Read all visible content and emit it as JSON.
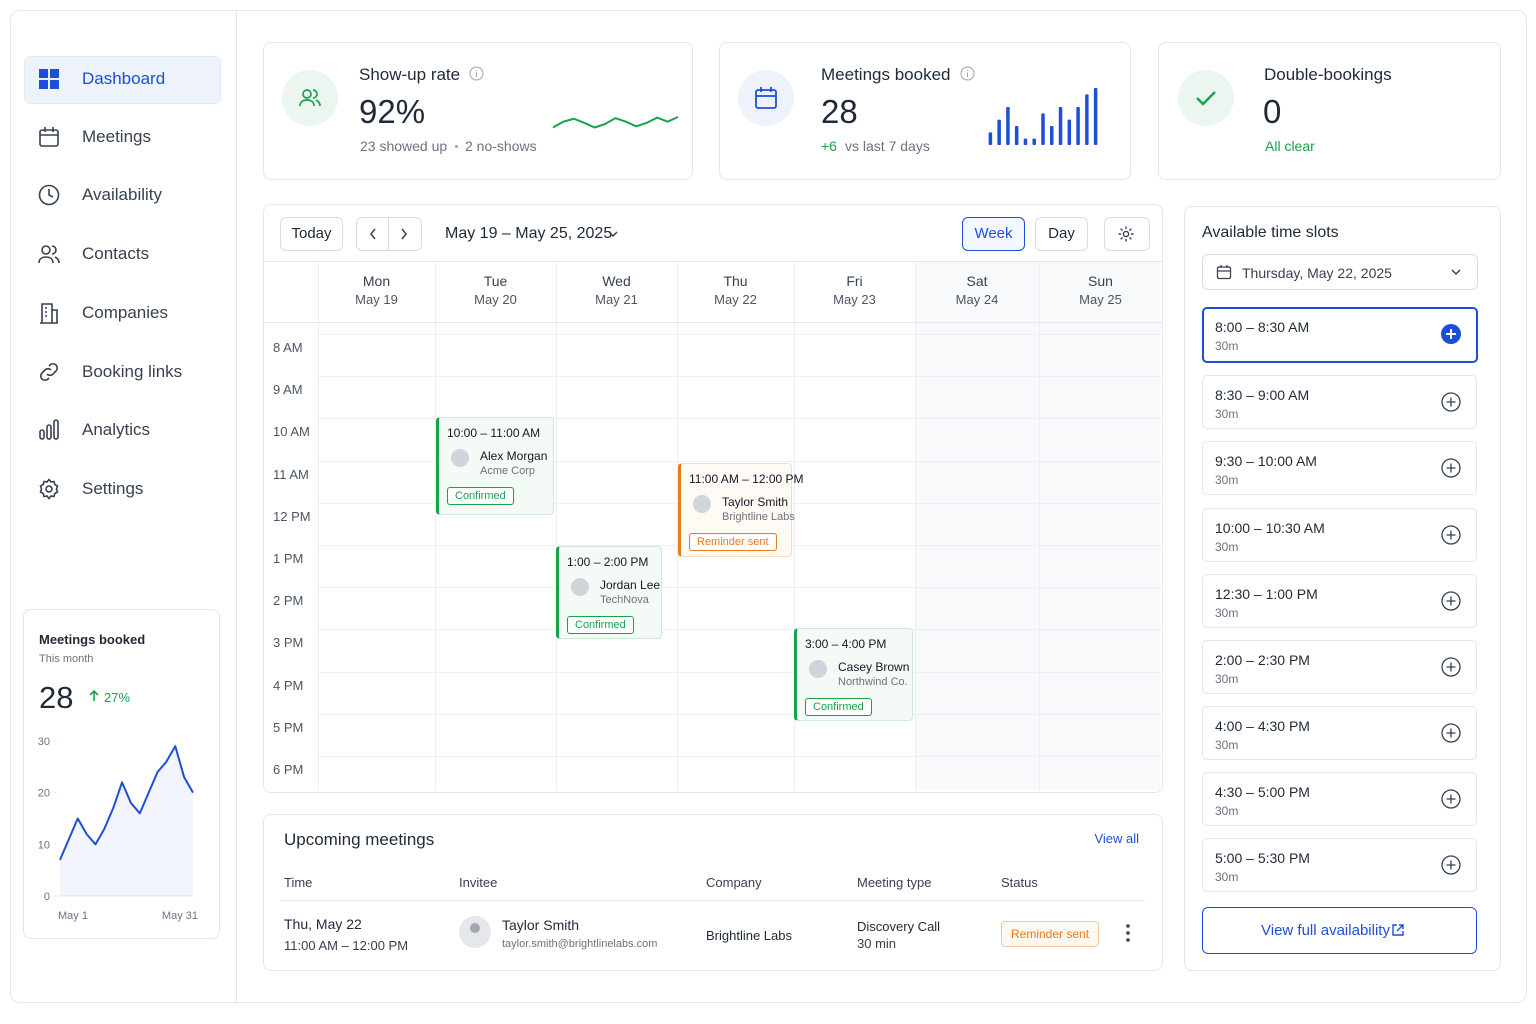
{
  "nav": {
    "items": [
      "Dashboard",
      "Meetings",
      "Availability",
      "Contacts",
      "Companies",
      "Booking links",
      "Analytics",
      "Settings"
    ]
  },
  "sidebar_card": {
    "title": "Meetings booked",
    "subtitle": "This month",
    "value": 28,
    "change": "27%",
    "chart": {
      "type": "line",
      "color": "#1d4ed8",
      "x_labels": [
        "May 1",
        "May 31"
      ],
      "values": [
        7,
        11,
        15,
        12,
        10,
        13,
        17,
        22,
        18,
        16,
        20,
        24,
        26,
        29,
        23,
        20
      ],
      "ylim": [
        0,
        30
      ],
      "yticks": [
        0,
        10,
        20,
        30
      ]
    }
  },
  "stats": [
    {
      "title": "Show-up rate",
      "value": "92%",
      "detail": "23 showed up",
      "detail2": "2 no-shows",
      "sparkline": {
        "type": "line",
        "color": "#16a34a",
        "values": [
          3,
          4,
          4.5,
          3.8,
          3,
          3.6,
          4.6,
          4,
          3.2,
          3.8,
          4.7,
          4,
          4.8
        ],
        "ylim": [
          0,
          6
        ]
      }
    },
    {
      "title": "Meetings booked",
      "value": 28,
      "change": "+6",
      "detail": "vs last 7 days",
      "sparkline": {
        "type": "bar",
        "color": "#1d4ed8",
        "values": [
          2,
          4,
          6,
          3,
          1,
          1,
          5,
          3,
          6,
          4,
          6,
          8,
          9
        ],
        "ylim": [
          0,
          9
        ]
      }
    },
    {
      "title": "Double-bookings",
      "value": 0,
      "detail": "All clear"
    }
  ],
  "calendar": {
    "today": "Today",
    "range": "May 19 – May 25, 2025",
    "views": [
      "Week",
      "Day"
    ],
    "days": [
      {
        "name": "Mon",
        "date": "May 19"
      },
      {
        "name": "Tue",
        "date": "May 20"
      },
      {
        "name": "Wed",
        "date": "May 21"
      },
      {
        "name": "Thu",
        "date": "May 22"
      },
      {
        "name": "Fri",
        "date": "May 23"
      },
      {
        "name": "Sat",
        "date": "May 24"
      },
      {
        "name": "Sun",
        "date": "May 25"
      }
    ],
    "hours": [
      "8 AM",
      "9 AM",
      "10 AM",
      "11 AM",
      "12 PM",
      "1 PM",
      "2 PM",
      "3 PM",
      "4 PM",
      "5 PM",
      "6 PM"
    ],
    "events": [
      {
        "time": "10:00 – 11:00 AM",
        "name": "Alex Morgan",
        "company": "Acme Corp",
        "status": "Confirmed",
        "color": "#16a34a"
      },
      {
        "time": "11:00 AM – 12:00 PM",
        "name": "Taylor Smith",
        "company": "Brightline Labs",
        "status": "Reminder sent",
        "color": "#ea7a1a"
      },
      {
        "time": "1:00 – 2:00 PM",
        "name": "Jordan Lee",
        "company": "TechNova",
        "status": "Confirmed",
        "color": "#16a34a"
      },
      {
        "time": "3:00 – 4:00 PM",
        "name": "Casey Brown",
        "company": "Northwind Co.",
        "status": "Confirmed",
        "color": "#16a34a"
      }
    ]
  },
  "upcoming": {
    "title": "Upcoming meetings",
    "view_all": "View all",
    "columns": [
      "Time",
      "Invitee",
      "Company",
      "Meeting type",
      "Status"
    ],
    "rows": [
      {
        "date": "Thu, May 22",
        "time": "11:00 AM – 12:00 PM",
        "name": "Taylor Smith",
        "email": "taylor.smith@brightlinelabs.com",
        "company": "Brightline Labs",
        "meeting_type": "Discovery Call",
        "duration": "30 min",
        "status": "Reminder sent"
      }
    ]
  },
  "slots": {
    "title": "Available time slots",
    "date": "Thursday, May 22, 2025",
    "button": "View full availability",
    "items": [
      {
        "time": "8:00 – 8:30 AM",
        "duration": "30m"
      },
      {
        "time": "8:30 – 9:00 AM",
        "duration": "30m"
      },
      {
        "time": "9:30 – 10:00 AM",
        "duration": "30m"
      },
      {
        "time": "10:00 – 10:30 AM",
        "duration": "30m"
      },
      {
        "time": "12:30 – 1:00 PM",
        "duration": "30m"
      },
      {
        "time": "2:00 – 2:30 PM",
        "duration": "30m"
      },
      {
        "time": "4:00 – 4:30 PM",
        "duration": "30m"
      },
      {
        "time": "4:30 – 5:00 PM",
        "duration": "30m"
      },
      {
        "time": "5:00 – 5:30 PM",
        "duration": "30m"
      }
    ]
  }
}
